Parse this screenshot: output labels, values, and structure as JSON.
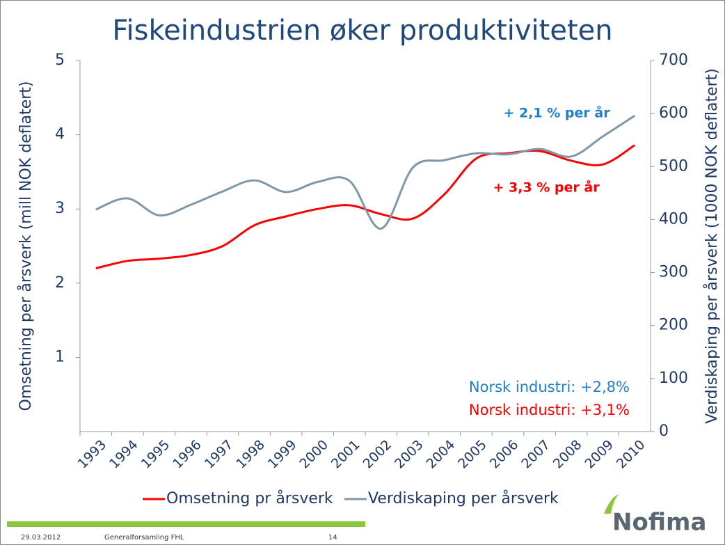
{
  "title": "Fiskeindustrien øker produktiviteten",
  "footer": {
    "date": "29.03.2012",
    "event": "Generalforsamling FHL",
    "page": "14",
    "logo": "Nofima"
  },
  "chart_data": {
    "type": "line",
    "categories": [
      "1993",
      "1994",
      "1995",
      "1996",
      "1997",
      "1998",
      "1999",
      "2000",
      "2001",
      "2002",
      "2003",
      "2004",
      "2005",
      "2006",
      "2007",
      "2008",
      "2009",
      "2010"
    ],
    "series": [
      {
        "name": "Omsetning pr årsverk",
        "color": "#ff0000",
        "axis": "y",
        "values": [
          2.2,
          2.3,
          2.33,
          2.38,
          2.5,
          2.78,
          2.9,
          3.0,
          3.05,
          2.93,
          2.87,
          3.2,
          3.68,
          3.75,
          3.78,
          3.65,
          3.6,
          3.86
        ]
      },
      {
        "name": "Verdiskaping per årsverk",
        "color": "#7f97a8",
        "axis": "y2",
        "values": [
          419,
          440,
          408,
          428,
          453,
          474,
          452,
          471,
          473,
          383,
          498,
          512,
          525,
          523,
          533,
          519,
          557,
          596
        ]
      }
    ],
    "ylim": [
      0,
      5
    ],
    "yticks": [
      1,
      2,
      3,
      4,
      5
    ],
    "y2lim": [
      0,
      700
    ],
    "y2ticks": [
      0,
      100,
      200,
      300,
      400,
      500,
      600,
      700
    ],
    "ylabel": "Omsetning per årsverk (mill NOK deflatert)",
    "y2label": "Verdiskaping per årsverk (1000 NOK deflatert)",
    "annotations": [
      {
        "text": "+ 2,1 % per år",
        "color": "#1f7fc8"
      },
      {
        "text": "+ 3,3 % per år",
        "color": "#ff0000"
      },
      {
        "text": "Norsk industri: +2,8%",
        "color": "#1f7fc8"
      },
      {
        "text": "Norsk industri: +3,1%",
        "color": "#ff0000"
      }
    ],
    "legend": "bottom"
  }
}
